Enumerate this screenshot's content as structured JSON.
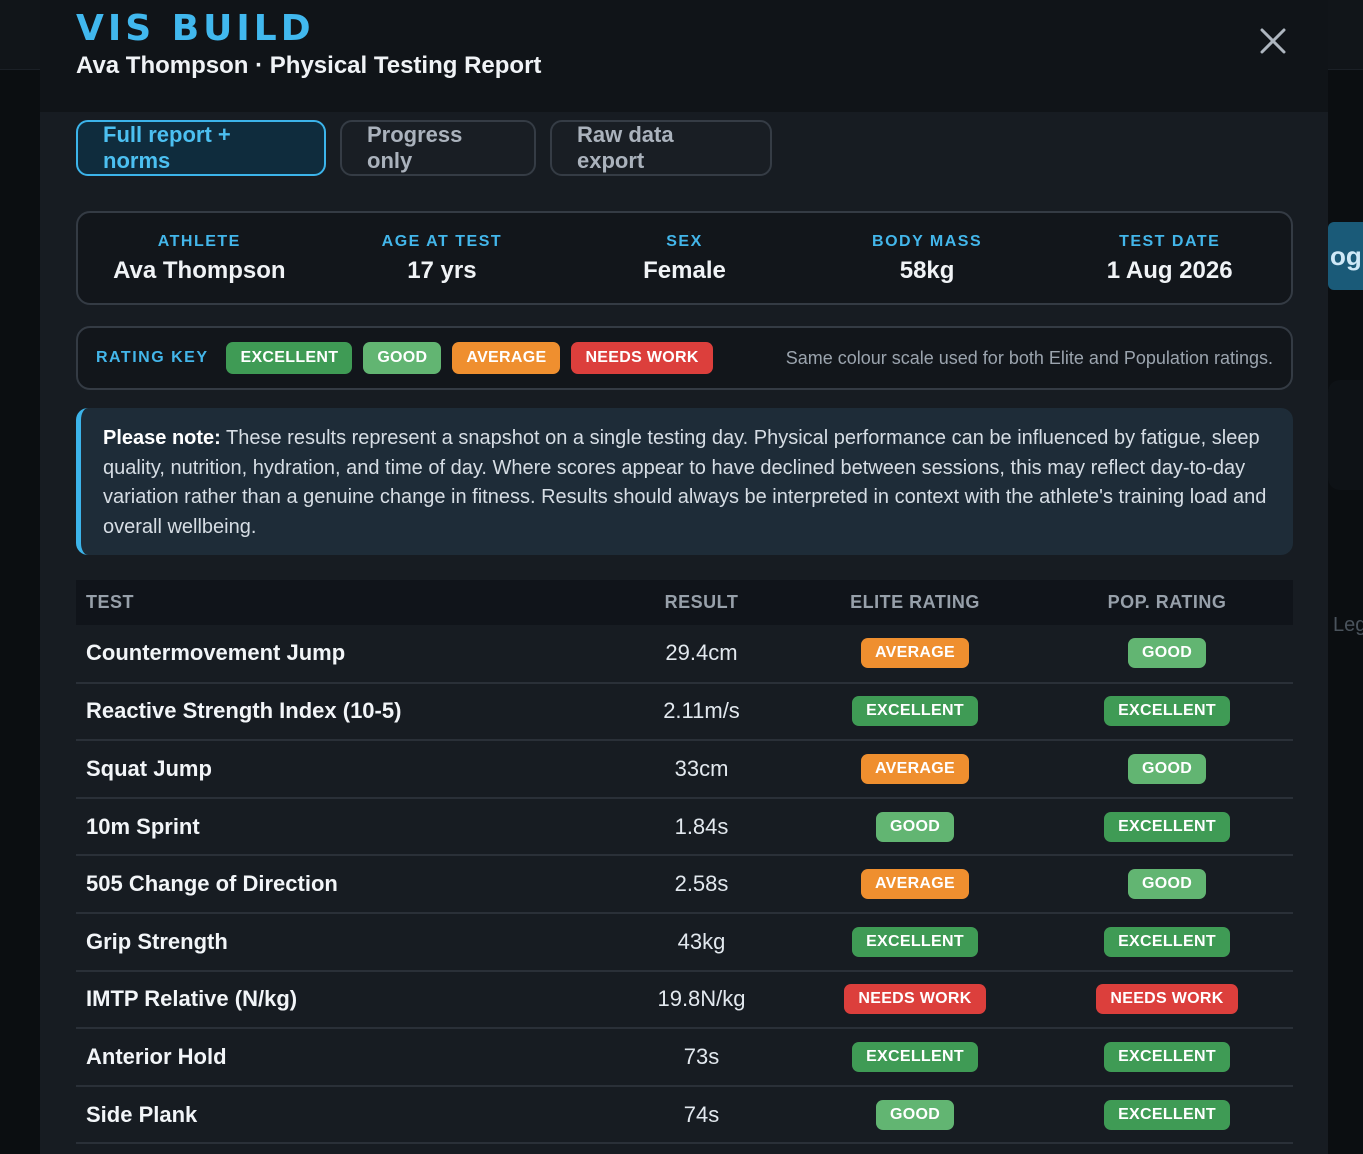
{
  "background": {
    "right_tab_text": "og",
    "right_side_text": "Leg"
  },
  "header": {
    "brand": "VIS BUILD",
    "subtitle": "Ava Thompson · Physical Testing Report"
  },
  "tabs": [
    {
      "label": "Full report + norms",
      "active": true
    },
    {
      "label": "Progress only",
      "active": false
    },
    {
      "label": "Raw data export",
      "active": false
    }
  ],
  "athlete_info": [
    {
      "label": "ATHLETE",
      "value": "Ava Thompson"
    },
    {
      "label": "AGE AT TEST",
      "value": "17 yrs"
    },
    {
      "label": "SEX",
      "value": "Female"
    },
    {
      "label": "BODY MASS",
      "value": "58kg"
    },
    {
      "label": "TEST DATE",
      "value": "1 Aug 2026"
    }
  ],
  "rating_key": {
    "title": "RATING KEY",
    "items": [
      {
        "label": "EXCELLENT",
        "color": "#3f9b55"
      },
      {
        "label": "GOOD",
        "color": "#62b572"
      },
      {
        "label": "AVERAGE",
        "color": "#ef8f2f"
      },
      {
        "label": "NEEDS WORK",
        "color": "#dc3f3c"
      }
    ],
    "note": "Same colour scale used for both Elite and Population ratings."
  },
  "note": {
    "lead": "Please note:",
    "text": "These results represent a snapshot on a single testing day. Physical performance can be influenced by fatigue, sleep quality, nutrition, hydration, and time of day. Where scores appear to have declined between sessions, this may reflect day-to-day variation rather than a genuine change in fitness. Results should always be interpreted in context with the athlete's training load and overall wellbeing."
  },
  "table": {
    "headers": {
      "test": "TEST",
      "result": "RESULT",
      "elite": "ELITE RATING",
      "pop": "POP. RATING"
    },
    "rows": [
      {
        "test": "Countermovement Jump",
        "result": "29.4cm",
        "elite": "AVERAGE",
        "pop": "GOOD"
      },
      {
        "test": "Reactive Strength Index (10-5)",
        "result": "2.11m/s",
        "elite": "EXCELLENT",
        "pop": "EXCELLENT"
      },
      {
        "test": "Squat Jump",
        "result": "33cm",
        "elite": "AVERAGE",
        "pop": "GOOD"
      },
      {
        "test": "10m Sprint",
        "result": "1.84s",
        "elite": "GOOD",
        "pop": "EXCELLENT"
      },
      {
        "test": "505 Change of Direction",
        "result": "2.58s",
        "elite": "AVERAGE",
        "pop": "GOOD"
      },
      {
        "test": "Grip Strength",
        "result": "43kg",
        "elite": "EXCELLENT",
        "pop": "EXCELLENT"
      },
      {
        "test": "IMTP Relative (N/kg)",
        "result": "19.8N/kg",
        "elite": "NEEDS WORK",
        "pop": "NEEDS WORK"
      },
      {
        "test": "Anterior Hold",
        "result": "73s",
        "elite": "EXCELLENT",
        "pop": "EXCELLENT"
      },
      {
        "test": "Side Plank",
        "result": "74s",
        "elite": "GOOD",
        "pop": "EXCELLENT"
      }
    ]
  },
  "colors": {
    "accent": "#41b8ee",
    "EXCELLENT": "#3f9b55",
    "GOOD": "#62b572",
    "AVERAGE": "#ef8f2f",
    "NEEDS WORK": "#dc3f3c"
  }
}
